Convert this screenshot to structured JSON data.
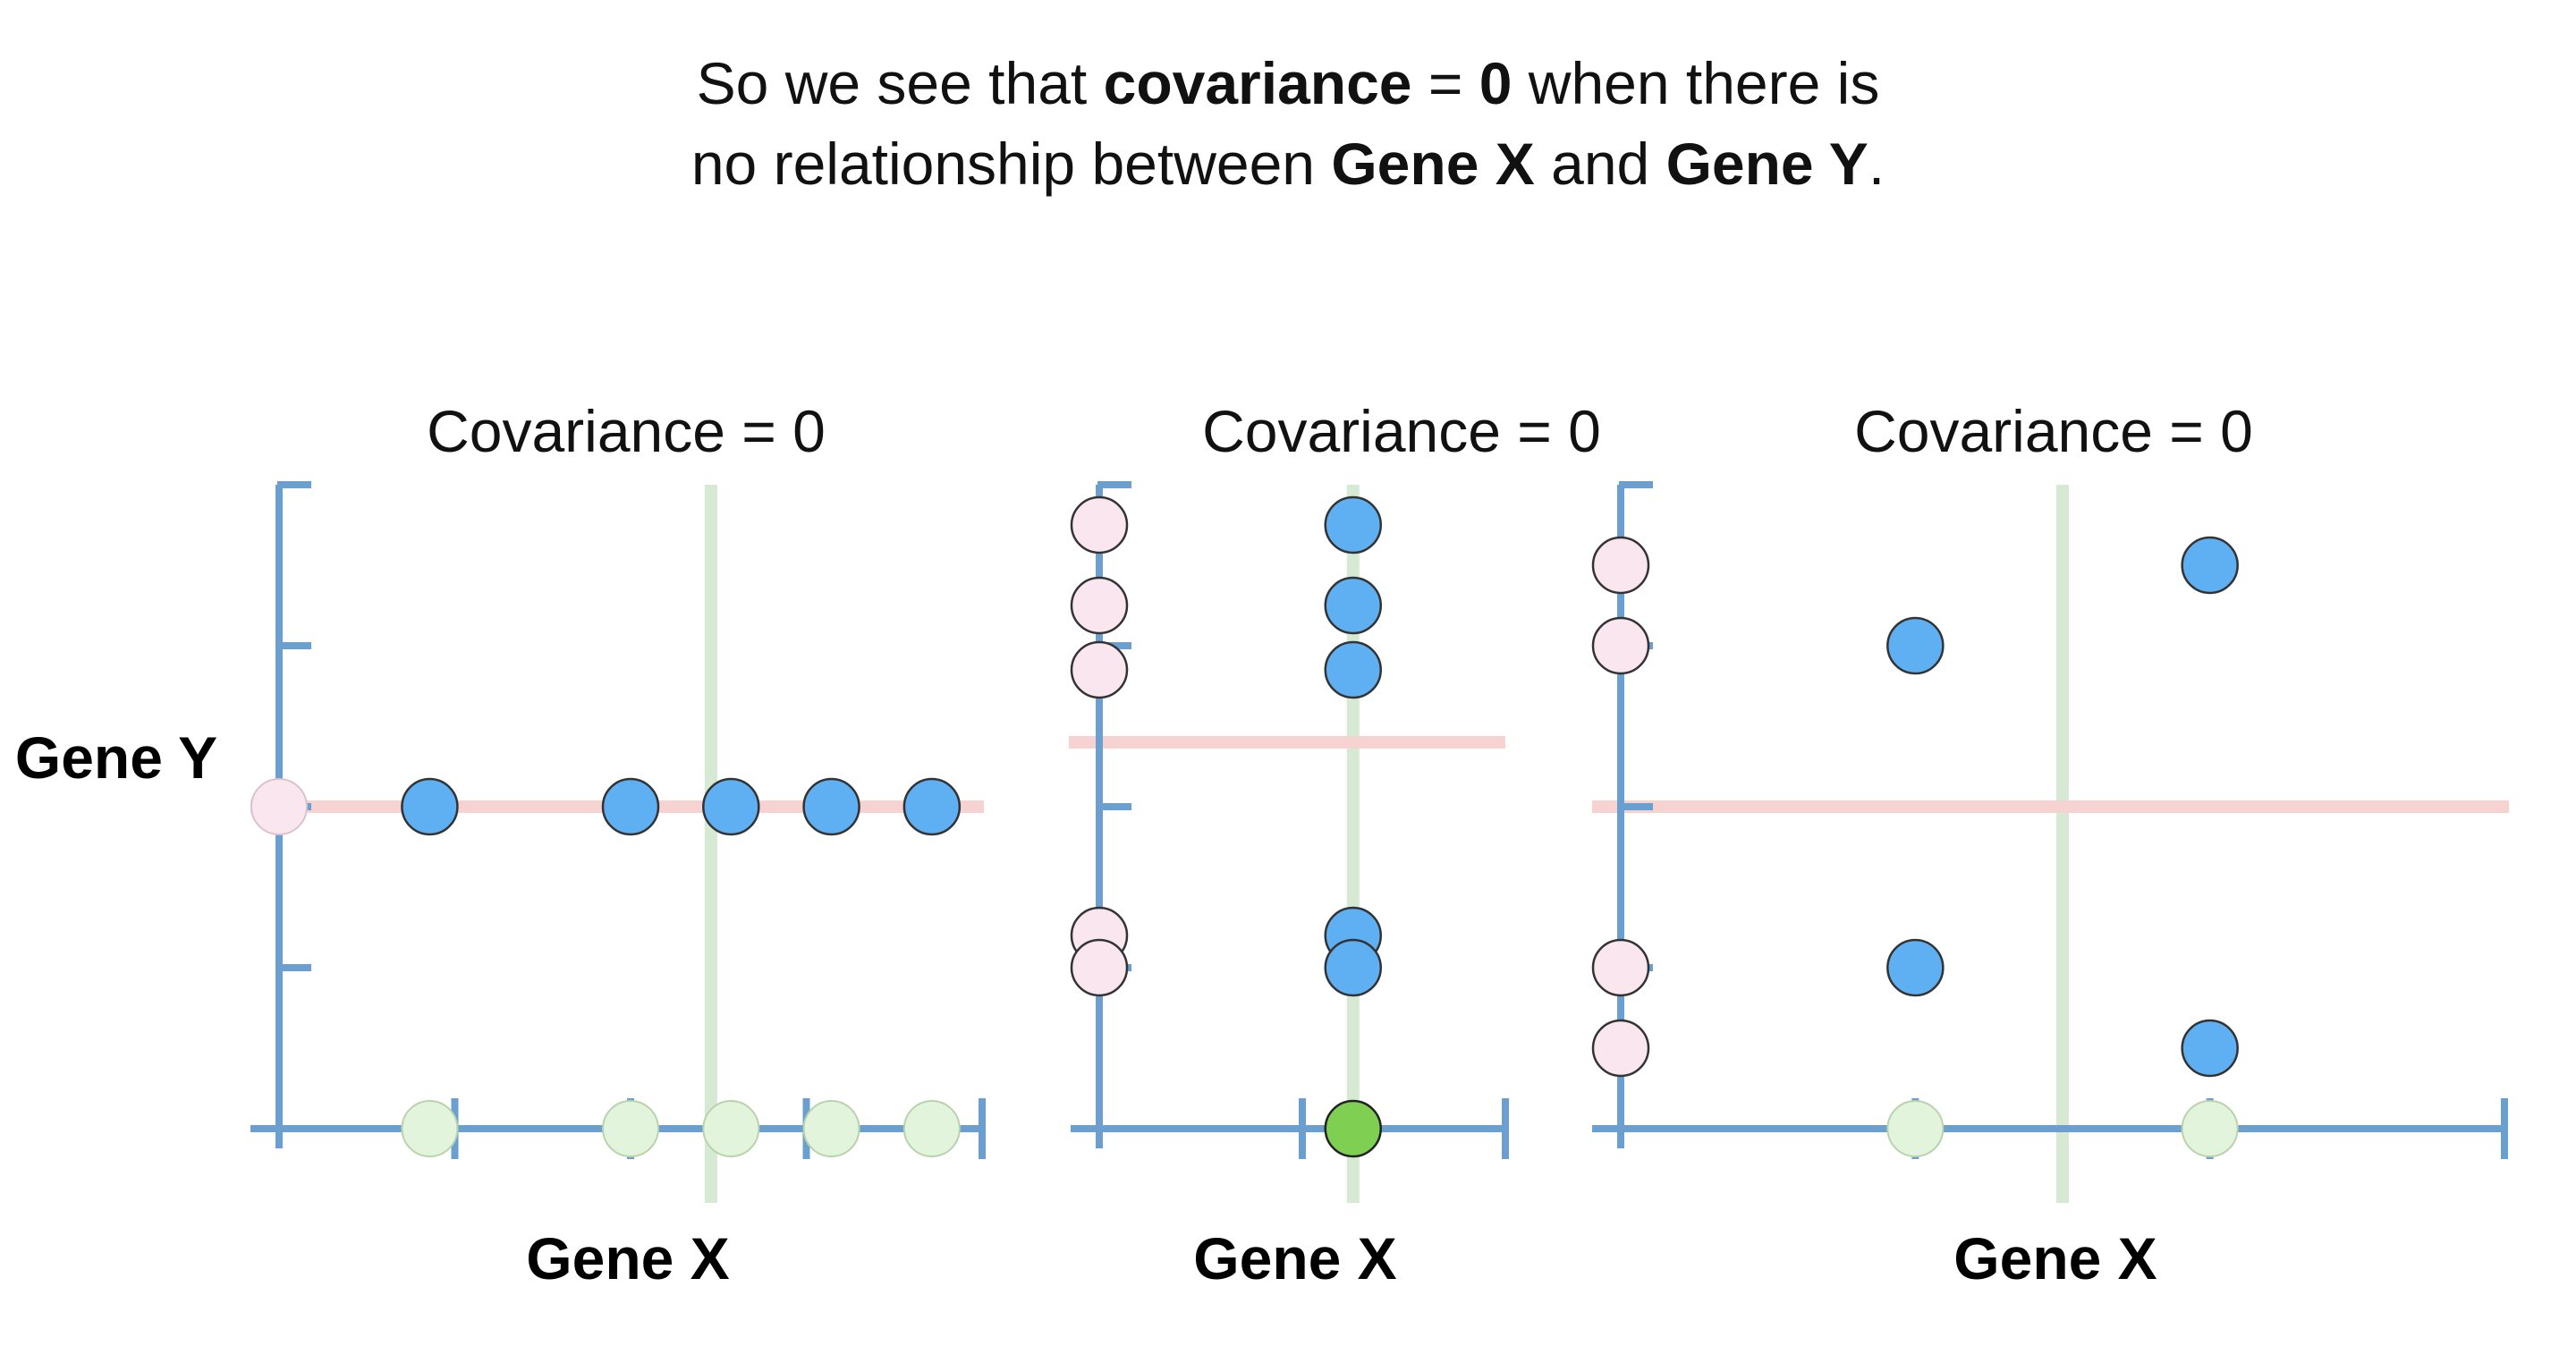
{
  "headline": {
    "l1a": "So we see that ",
    "l1b": "covariance",
    "l1c": " = ",
    "l1d": "0",
    "l1e": " when there is",
    "l2a": "no relationship between ",
    "l2b": "Gene X",
    "l2c": " and ",
    "l2d": "Gene Y",
    "l2e": "."
  },
  "colors": {
    "axis": "#6b9fd0",
    "mean_x_line": "#d6e9d3",
    "mean_y_line": "#f6d2d0",
    "point_blue": "#5eb0f2",
    "proj_y_pink": "#f9e6ef",
    "proj_x_green": "#e2f4db",
    "proj_x_green_dark": "#7fcf52"
  },
  "chart_data": [
    {
      "type": "scatter",
      "title": "Covariance = 0",
      "xlabel": "Gene X",
      "ylabel": "Gene Y",
      "x_ticks": 4,
      "y_ticks": 5,
      "points": [
        [
          1.5,
          4
        ],
        [
          3.5,
          4
        ],
        [
          4.5,
          4
        ],
        [
          5.5,
          4
        ],
        [
          6.5,
          4
        ]
      ],
      "mean_x": 4.3,
      "mean_y": 4,
      "xlim": [
        0,
        7
      ],
      "ylim": [
        0,
        8
      ]
    },
    {
      "type": "scatter",
      "title": "Covariance = 0",
      "xlabel": "Gene X",
      "ylabel": "",
      "x_ticks": 2,
      "y_ticks": 4,
      "points": [
        [
          5,
          7.5
        ],
        [
          5,
          6.5
        ],
        [
          5,
          5.7
        ],
        [
          5,
          2.4
        ],
        [
          5,
          2
        ]
      ],
      "mean_x": 5,
      "mean_y": 4.8,
      "xlim": [
        0,
        8
      ],
      "ylim": [
        0,
        8
      ]
    },
    {
      "type": "scatter",
      "title": "Covariance = 0",
      "xlabel": "Gene X",
      "ylabel": "",
      "x_ticks": 3,
      "y_ticks": 4,
      "points": [
        [
          5,
          6
        ],
        [
          10,
          7
        ],
        [
          5,
          2
        ],
        [
          10,
          1
        ]
      ],
      "mean_x": 7.5,
      "mean_y": 4,
      "xlim": [
        0,
        15
      ],
      "ylim": [
        0,
        8
      ]
    }
  ]
}
